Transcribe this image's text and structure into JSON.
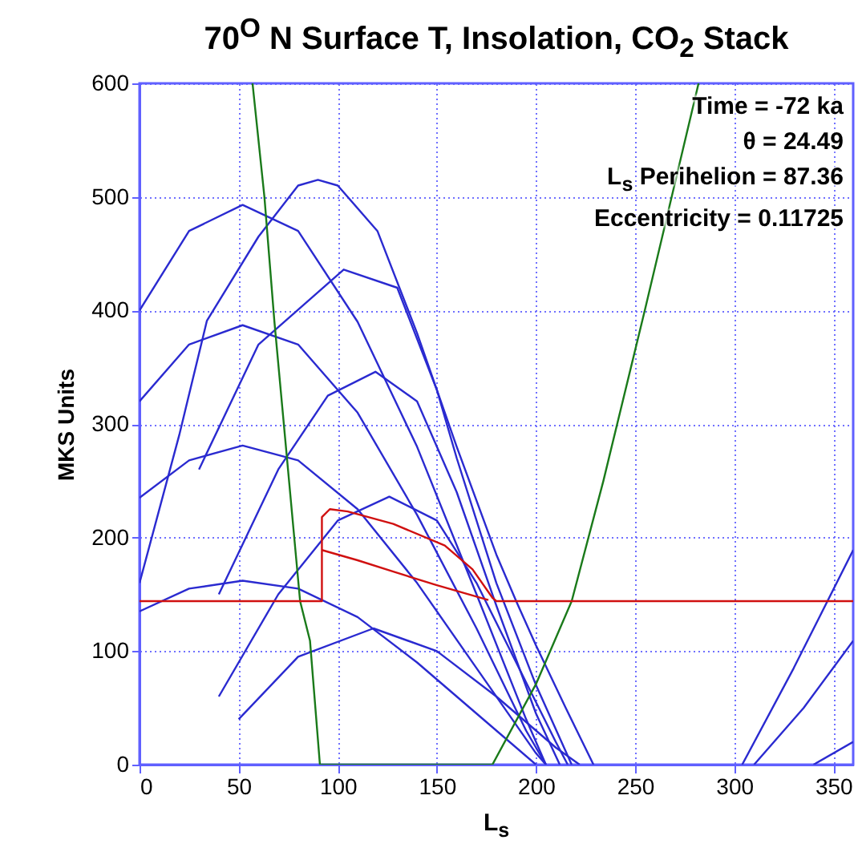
{
  "chart_data": {
    "type": "line",
    "title": "70$^{O}$ N Surface T, Insolation, CO$_{2}$ Stack",
    "xlabel": "L$_{s}$",
    "ylabel": "MKS Units",
    "annotations": [
      "Time = -72 ka",
      "θ = 24.49",
      "L$_{s}$ Perihelion = 87.36",
      "Eccentricity = 0.11725"
    ],
    "xlim": [
      0,
      360
    ],
    "xticks": [
      0,
      50,
      100,
      150,
      200,
      250,
      300,
      350
    ],
    "ylim": [
      0,
      600
    ],
    "yticks": [
      0,
      100,
      200,
      300,
      400,
      500,
      600
    ],
    "grid": true,
    "series": [
      {
        "color": "#2a2ad0",
        "x": [
          0,
          20,
          34,
          60,
          80,
          90,
          100,
          120,
          140,
          160,
          180,
          190,
          200,
          215,
          229
        ],
        "values": [
          160,
          290,
          391,
          465,
          510,
          515,
          510,
          470,
          380,
          280,
          185,
          144,
          105,
          50,
          0
        ]
      },
      {
        "color": "#2a2ad0",
        "x": [
          0,
          25,
          52,
          80,
          110,
          140,
          170,
          195,
          205
        ],
        "values": [
          400,
          470,
          493,
          470,
          390,
          280,
          150,
          40,
          0
        ]
      },
      {
        "color": "#2a2ad0",
        "x": [
          0,
          25,
          52,
          80,
          110,
          140,
          170,
          195,
          205
        ],
        "values": [
          320,
          370,
          387,
          370,
          310,
          220,
          120,
          30,
          0
        ]
      },
      {
        "color": "#2a2ad0",
        "x": [
          0,
          25,
          52,
          80,
          110,
          140,
          170,
          200,
          205
        ],
        "values": [
          235,
          268,
          281,
          268,
          225,
          160,
          85,
          10,
          0
        ]
      },
      {
        "color": "#2a2ad0",
        "x": [
          0,
          25,
          52,
          80,
          110,
          140,
          170,
          200
        ],
        "values": [
          135,
          155,
          162,
          155,
          130,
          90,
          45,
          0
        ]
      },
      {
        "color": "#2a2ad0",
        "x": [
          30,
          60,
          103,
          130,
          150,
          160,
          180,
          200,
          218
        ],
        "values": [
          260,
          370,
          436,
          420,
          330,
          270,
          160,
          70,
          0
        ]
      },
      {
        "color": "#2a2ad0",
        "x": [
          40,
          70,
          95,
          119,
          140,
          160,
          180,
          200,
          212
        ],
        "values": [
          150,
          260,
          325,
          346,
          320,
          240,
          140,
          45,
          0
        ]
      },
      {
        "color": "#2a2ad0",
        "x": [
          40,
          70,
          100,
          126,
          150,
          170,
          190,
          210,
          216
        ],
        "values": [
          60,
          150,
          215,
          236,
          215,
          160,
          90,
          20,
          0
        ]
      },
      {
        "color": "#2a2ad0",
        "x": [
          50,
          80,
          118,
          150,
          180,
          210,
          222
        ],
        "values": [
          40,
          95,
          120,
          100,
          60,
          15,
          0
        ]
      },
      {
        "color": "#2a2ad0",
        "x": [
          304,
          330,
          360
        ],
        "values": [
          0,
          85,
          189
        ]
      },
      {
        "color": "#2a2ad0",
        "x": [
          310,
          335,
          360
        ],
        "values": [
          0,
          50,
          109
        ]
      },
      {
        "color": "#2a2ad0",
        "x": [
          340,
          360
        ],
        "values": [
          0,
          20
        ]
      },
      {
        "color": "#1a7a1a",
        "x": [
          57,
          63,
          68,
          81,
          86,
          91,
          178,
          200,
          218,
          234,
          255,
          282
        ],
        "values": [
          600,
          500,
          391,
          144,
          109,
          0,
          0,
          71,
          144,
          250,
          401,
          600
        ]
      },
      {
        "color": "#d01010",
        "x": [
          0,
          92,
          92,
          92,
          96,
          105,
          128,
          154,
          168,
          178,
          180,
          360
        ],
        "values": [
          144,
          144,
          189,
          218,
          225,
          223,
          212,
          193,
          172,
          147,
          144,
          144
        ]
      },
      {
        "color": "#d01010",
        "x": [
          92,
          110,
          128,
          150,
          176
        ],
        "values": [
          189,
          180,
          170,
          158,
          145
        ]
      }
    ]
  }
}
